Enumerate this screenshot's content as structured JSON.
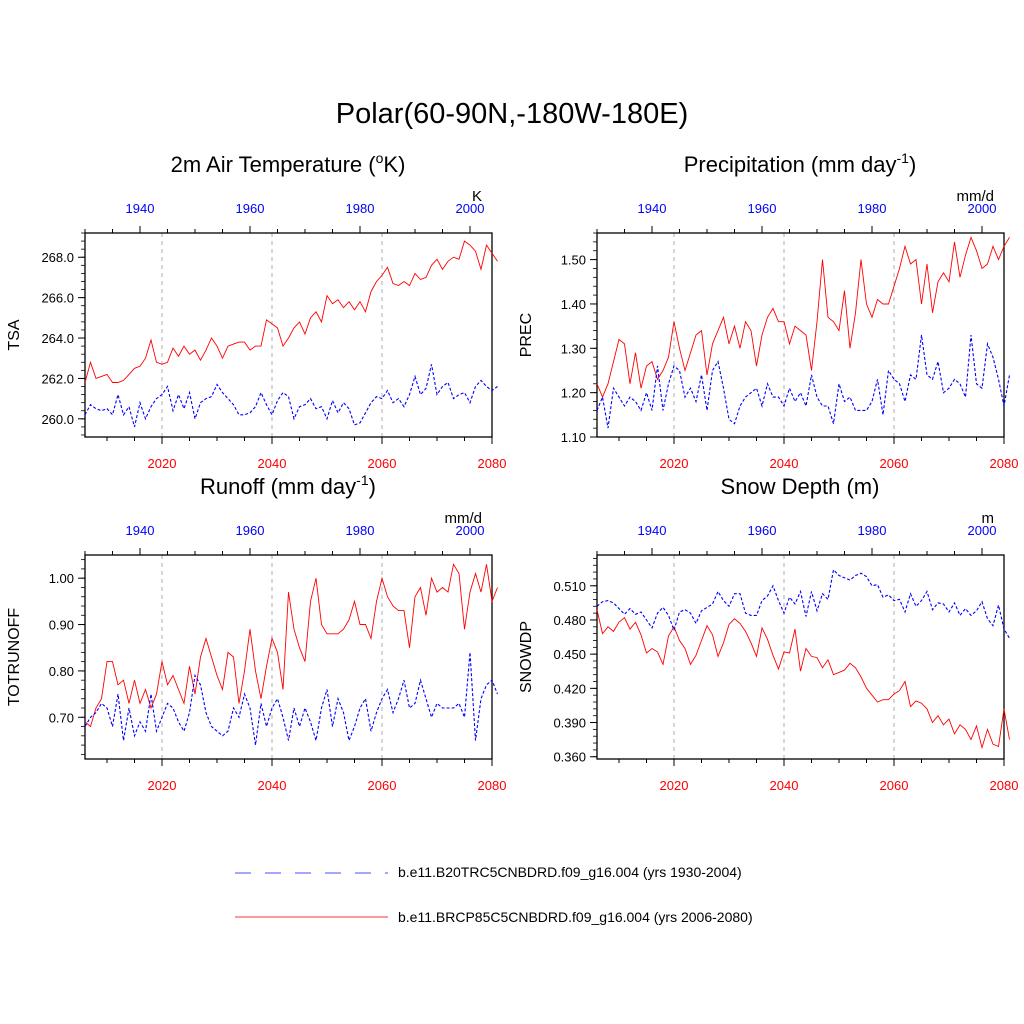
{
  "title": "Polar(60-90N,-180W-180E)",
  "legend": [
    {
      "label": "b.e11.B20TRC5CNBDRD.f09_g16.004 (yrs 1930-2004)",
      "color": "#0000ff",
      "style": "dashed"
    },
    {
      "label": "b.e11.BRCP85C5CNBDRD.f09_g16.004 (yrs 2006-2080)",
      "color": "#ff0000",
      "style": "solid"
    }
  ],
  "colors": {
    "future": "#ff0000",
    "hist": "#0000ff",
    "grid": "#bbbbbb",
    "axis": "#000000"
  },
  "chart_data": [
    {
      "id": "tsa",
      "type": "line",
      "title_main": "2m Air Temperature (",
      "title_sup": "o",
      "title_tail": "K)",
      "ylabel": "TSA",
      "units": "K",
      "ylim": [
        259.1,
        269.2
      ],
      "yticks": [
        260.0,
        262.0,
        264.0,
        266.0,
        268.0
      ],
      "ytick_labels": [
        "260.0",
        "262.0",
        "264.0",
        "266.0",
        "268.0"
      ],
      "xlim": [
        2006,
        2080
      ],
      "xticks_bottom": [
        2020,
        2040,
        2060,
        2080
      ],
      "xlabels_bottom": [
        "2020",
        "2040",
        "2060",
        "2080"
      ],
      "xticks_top": [
        1940,
        1960,
        1980,
        2000
      ],
      "xlabels_top": [
        "1940",
        "1960",
        "1980",
        "2000"
      ],
      "series": [
        {
          "name": "b.e11.BRCP85C5CNBDRD.f09_g16.004 (yrs 2006-2080)",
          "x_start": 2006,
          "values": [
            261.8,
            262.8,
            262.0,
            262.1,
            262.2,
            261.8,
            261.8,
            261.9,
            262.2,
            262.5,
            262.6,
            263.0,
            263.9,
            262.8,
            262.7,
            262.8,
            263.5,
            263.1,
            263.6,
            263.2,
            263.4,
            262.9,
            263.4,
            264.0,
            263.6,
            263.0,
            263.6,
            263.7,
            263.8,
            263.8,
            263.4,
            263.6,
            263.6,
            264.9,
            264.7,
            264.5,
            263.6,
            264.0,
            264.5,
            264.8,
            264.2,
            265.0,
            265.3,
            264.8,
            266.1,
            265.7,
            265.9,
            265.5,
            265.8,
            265.4,
            265.8,
            265.3,
            266.3,
            266.8,
            267.1,
            267.5,
            266.7,
            266.6,
            266.8,
            266.6,
            267.2,
            266.9,
            267.0,
            267.6,
            267.9,
            267.4,
            267.8,
            268.0,
            267.9,
            268.8,
            268.6,
            268.3,
            267.4,
            268.6,
            268.2,
            267.8
          ]
        },
        {
          "name": "b.e11.B20TRC5CNBDRD.f09_g16.004 (yrs 1930-2004)",
          "x_start": 2006,
          "values": [
            260.2,
            260.7,
            260.5,
            260.4,
            260.5,
            260.2,
            261.2,
            260.2,
            260.6,
            259.6,
            260.8,
            260.0,
            260.6,
            261.0,
            261.2,
            261.6,
            260.4,
            261.2,
            260.5,
            261.3,
            260.0,
            260.8,
            261.0,
            261.1,
            261.7,
            261.3,
            261.0,
            260.7,
            260.2,
            260.2,
            260.3,
            260.6,
            261.3,
            260.7,
            260.2,
            260.9,
            261.3,
            261.1,
            260.0,
            260.6,
            260.7,
            261.0,
            260.5,
            260.6,
            260.0,
            260.9,
            260.3,
            260.8,
            260.5,
            259.7,
            259.8,
            260.3,
            260.8,
            261.1,
            261.0,
            261.4,
            260.8,
            261.0,
            260.6,
            261.2,
            262.1,
            261.2,
            261.5,
            262.7,
            261.2,
            261.6,
            261.8,
            261.0,
            261.2,
            261.3,
            260.8,
            261.6,
            261.9,
            261.6,
            261.4,
            261.6
          ]
        }
      ]
    },
    {
      "id": "prec",
      "type": "line",
      "title_main": "Precipitation (mm day",
      "title_sup": "-1",
      "title_tail": ")",
      "ylabel": "PREC",
      "units": "mm/d",
      "ylim": [
        1.1,
        1.56
      ],
      "yticks": [
        1.1,
        1.2,
        1.3,
        1.4,
        1.5
      ],
      "ytick_labels": [
        "1.10",
        "1.20",
        "1.30",
        "1.40",
        "1.50"
      ],
      "xlim": [
        2006,
        2080
      ],
      "xticks_bottom": [
        2020,
        2040,
        2060,
        2080
      ],
      "xlabels_bottom": [
        "2020",
        "2040",
        "2060",
        "2080"
      ],
      "xticks_top": [
        1940,
        1960,
        1980,
        2000
      ],
      "xlabels_top": [
        "1940",
        "1960",
        "1980",
        "2000"
      ],
      "series": [
        {
          "name": "b.e11.BRCP85C5CNBDRD.f09_g16.004 (yrs 2006-2080)",
          "x_start": 2006,
          "values": [
            1.22,
            1.19,
            1.22,
            1.27,
            1.32,
            1.31,
            1.22,
            1.29,
            1.21,
            1.26,
            1.27,
            1.23,
            1.25,
            1.28,
            1.36,
            1.3,
            1.25,
            1.29,
            1.33,
            1.34,
            1.24,
            1.31,
            1.34,
            1.37,
            1.31,
            1.35,
            1.3,
            1.36,
            1.34,
            1.26,
            1.33,
            1.37,
            1.39,
            1.36,
            1.36,
            1.31,
            1.35,
            1.34,
            1.33,
            1.25,
            1.36,
            1.5,
            1.37,
            1.36,
            1.34,
            1.43,
            1.3,
            1.38,
            1.5,
            1.4,
            1.37,
            1.41,
            1.4,
            1.4,
            1.44,
            1.48,
            1.53,
            1.49,
            1.5,
            1.4,
            1.49,
            1.38,
            1.45,
            1.47,
            1.45,
            1.54,
            1.46,
            1.51,
            1.55,
            1.52,
            1.48,
            1.49,
            1.53,
            1.5,
            1.53,
            1.55
          ]
        },
        {
          "name": "b.e11.B20TRC5CNBDRD.f09_g16.004 (yrs 1930-2004)",
          "x_start": 2006,
          "values": [
            1.16,
            1.19,
            1.12,
            1.21,
            1.19,
            1.17,
            1.19,
            1.18,
            1.16,
            1.2,
            1.16,
            1.26,
            1.16,
            1.22,
            1.26,
            1.25,
            1.19,
            1.21,
            1.18,
            1.24,
            1.16,
            1.25,
            1.27,
            1.21,
            1.14,
            1.13,
            1.17,
            1.19,
            1.2,
            1.21,
            1.17,
            1.22,
            1.19,
            1.19,
            1.17,
            1.21,
            1.18,
            1.2,
            1.17,
            1.24,
            1.19,
            1.17,
            1.17,
            1.13,
            1.22,
            1.18,
            1.19,
            1.16,
            1.16,
            1.16,
            1.18,
            1.23,
            1.15,
            1.25,
            1.23,
            1.22,
            1.18,
            1.24,
            1.23,
            1.33,
            1.24,
            1.23,
            1.27,
            1.2,
            1.21,
            1.23,
            1.22,
            1.19,
            1.33,
            1.22,
            1.21,
            1.31,
            1.28,
            1.23,
            1.17,
            1.24
          ]
        }
      ]
    },
    {
      "id": "runoff",
      "type": "line",
      "title_main": "Runoff (mm day",
      "title_sup": "-1",
      "title_tail": ")",
      "ylabel": "TOTRUNOFF",
      "units": "mm/d",
      "ylim": [
        0.61,
        1.05
      ],
      "yticks": [
        0.7,
        0.8,
        0.9,
        1.0
      ],
      "ytick_labels": [
        "0.70",
        "0.80",
        "0.90",
        "1.00"
      ],
      "xlim": [
        2006,
        2080
      ],
      "xticks_bottom": [
        2020,
        2040,
        2060,
        2080
      ],
      "xlabels_bottom": [
        "2020",
        "2040",
        "2060",
        "2080"
      ],
      "xticks_top": [
        1940,
        1960,
        1980,
        2000
      ],
      "xlabels_top": [
        "1940",
        "1960",
        "1980",
        "2000"
      ],
      "series": [
        {
          "name": "b.e11.BRCP85C5CNBDRD.f09_g16.004 (yrs 2006-2080)",
          "x_start": 2006,
          "values": [
            0.69,
            0.68,
            0.72,
            0.74,
            0.82,
            0.82,
            0.77,
            0.78,
            0.73,
            0.78,
            0.73,
            0.76,
            0.72,
            0.75,
            0.82,
            0.77,
            0.79,
            0.76,
            0.73,
            0.81,
            0.75,
            0.83,
            0.87,
            0.83,
            0.79,
            0.76,
            0.84,
            0.83,
            0.73,
            0.8,
            0.89,
            0.8,
            0.74,
            0.81,
            0.87,
            0.84,
            0.76,
            0.97,
            0.89,
            0.85,
            0.82,
            0.95,
            1.0,
            0.9,
            0.88,
            0.88,
            0.88,
            0.89,
            0.91,
            0.95,
            0.9,
            0.9,
            0.87,
            0.95,
            1.0,
            0.96,
            0.94,
            0.93,
            0.93,
            0.85,
            0.96,
            0.98,
            0.92,
            1.0,
            0.97,
            0.98,
            0.97,
            1.03,
            1.01,
            0.89,
            0.97,
            1.01,
            0.97,
            1.03,
            0.95,
            0.98
          ]
        },
        {
          "name": "b.e11.B20TRC5CNBDRD.f09_g16.004 (yrs 1930-2004)",
          "x_start": 2006,
          "values": [
            0.68,
            0.7,
            0.71,
            0.73,
            0.72,
            0.68,
            0.75,
            0.65,
            0.72,
            0.66,
            0.69,
            0.67,
            0.75,
            0.67,
            0.7,
            0.73,
            0.72,
            0.69,
            0.67,
            0.71,
            0.79,
            0.77,
            0.71,
            0.68,
            0.67,
            0.66,
            0.67,
            0.72,
            0.7,
            0.75,
            0.72,
            0.64,
            0.73,
            0.68,
            0.72,
            0.74,
            0.7,
            0.65,
            0.72,
            0.68,
            0.72,
            0.69,
            0.65,
            0.72,
            0.76,
            0.68,
            0.74,
            0.71,
            0.65,
            0.68,
            0.72,
            0.74,
            0.67,
            0.71,
            0.74,
            0.76,
            0.71,
            0.74,
            0.78,
            0.72,
            0.73,
            0.78,
            0.74,
            0.7,
            0.73,
            0.72,
            0.72,
            0.72,
            0.73,
            0.7,
            0.84,
            0.65,
            0.74,
            0.77,
            0.78,
            0.75
          ]
        }
      ]
    },
    {
      "id": "snowdp",
      "type": "line",
      "title_main": "Snow Depth (m)",
      "title_sup": "",
      "title_tail": "",
      "ylabel": "SNOWDP",
      "units": "m",
      "ylim": [
        0.358,
        0.537
      ],
      "yticks": [
        0.36,
        0.39,
        0.42,
        0.45,
        0.48,
        0.51
      ],
      "ytick_labels": [
        "0.360",
        "0.390",
        "0.420",
        "0.450",
        "0.480",
        "0.510"
      ],
      "xlim": [
        2006,
        2080
      ],
      "xticks_bottom": [
        2020,
        2040,
        2060,
        2080
      ],
      "xlabels_bottom": [
        "2020",
        "2040",
        "2060",
        "2080"
      ],
      "xticks_top": [
        1940,
        1960,
        1980,
        2000
      ],
      "xlabels_top": [
        "1940",
        "1960",
        "1980",
        "2000"
      ],
      "series": [
        {
          "name": "b.e11.BRCP85C5CNBDRD.f09_g16.004 (yrs 2006-2080)",
          "x_start": 2006,
          "values": [
            0.489,
            0.468,
            0.474,
            0.47,
            0.478,
            0.482,
            0.472,
            0.478,
            0.467,
            0.451,
            0.455,
            0.452,
            0.441,
            0.466,
            0.474,
            0.462,
            0.455,
            0.441,
            0.449,
            0.462,
            0.475,
            0.467,
            0.448,
            0.46,
            0.476,
            0.481,
            0.477,
            0.47,
            0.46,
            0.448,
            0.473,
            0.463,
            0.449,
            0.437,
            0.452,
            0.451,
            0.472,
            0.435,
            0.455,
            0.448,
            0.447,
            0.438,
            0.445,
            0.432,
            0.434,
            0.436,
            0.442,
            0.438,
            0.43,
            0.42,
            0.414,
            0.408,
            0.41,
            0.41,
            0.415,
            0.418,
            0.426,
            0.404,
            0.409,
            0.407,
            0.402,
            0.39,
            0.396,
            0.388,
            0.393,
            0.38,
            0.388,
            0.384,
            0.375,
            0.387,
            0.368,
            0.384,
            0.371,
            0.369,
            0.402,
            0.375
          ]
        },
        {
          "name": "b.e11.B20TRC5CNBDRD.f09_g16.004 (yrs 1930-2004)",
          "x_start": 2006,
          "values": [
            0.492,
            0.496,
            0.497,
            0.495,
            0.49,
            0.485,
            0.49,
            0.485,
            0.487,
            0.48,
            0.473,
            0.486,
            0.491,
            0.484,
            0.471,
            0.487,
            0.489,
            0.486,
            0.477,
            0.488,
            0.491,
            0.494,
            0.505,
            0.497,
            0.492,
            0.503,
            0.503,
            0.486,
            0.484,
            0.484,
            0.497,
            0.501,
            0.51,
            0.497,
            0.486,
            0.5,
            0.494,
            0.505,
            0.483,
            0.505,
            0.488,
            0.503,
            0.498,
            0.524,
            0.519,
            0.517,
            0.515,
            0.519,
            0.521,
            0.518,
            0.51,
            0.511,
            0.5,
            0.502,
            0.497,
            0.498,
            0.487,
            0.503,
            0.492,
            0.497,
            0.505,
            0.489,
            0.495,
            0.494,
            0.487,
            0.495,
            0.484,
            0.49,
            0.484,
            0.488,
            0.496,
            0.481,
            0.475,
            0.493,
            0.472,
            0.464
          ]
        }
      ]
    }
  ]
}
